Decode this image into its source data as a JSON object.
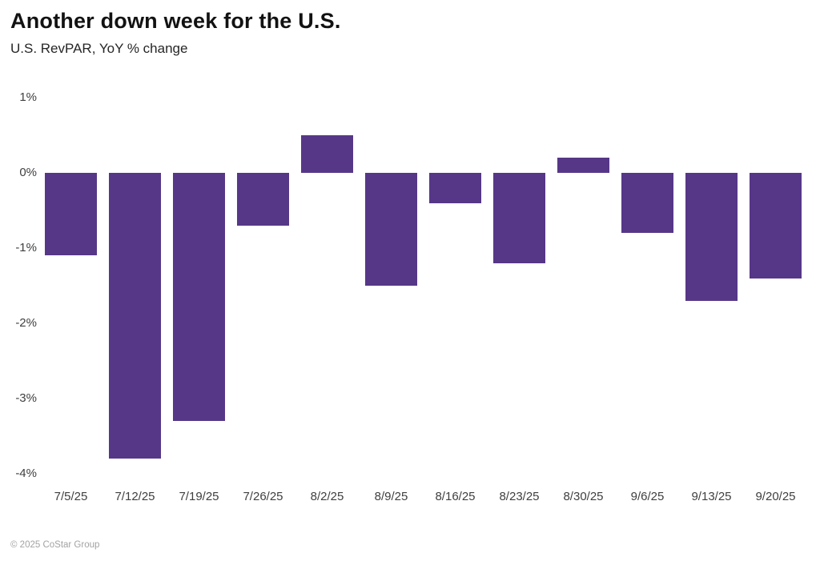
{
  "header": {
    "title": "Another down week for the U.S.",
    "subtitle": "U.S. RevPAR, YoY % change"
  },
  "footer": {
    "copyright": "© 2025 CoStar Group"
  },
  "colors": {
    "bar": "#563787",
    "title_text": "#121212",
    "subtitle_text": "#262626",
    "axis_text": "#3f3f3f",
    "footer_text": "#a3a3a3",
    "background": "#ffffff"
  },
  "chart_data": {
    "type": "bar",
    "title": "Another down week for the U.S.",
    "subtitle": "U.S. RevPAR, YoY % change",
    "categories": [
      "7/5/25",
      "7/12/25",
      "7/19/25",
      "7/26/25",
      "8/2/25",
      "8/9/25",
      "8/16/25",
      "8/23/25",
      "8/30/25",
      "9/6/25",
      "9/13/25",
      "9/20/25"
    ],
    "values": [
      -1.1,
      -3.8,
      -3.3,
      -0.7,
      0.5,
      -1.5,
      -0.4,
      -1.2,
      0.2,
      -0.8,
      -1.7,
      -1.4
    ],
    "unit": "%",
    "xlabel": "",
    "ylabel": "",
    "ylim": [
      -4,
      1
    ],
    "yticks": [
      1,
      0,
      -1,
      -2,
      -3,
      -4
    ],
    "ytick_labels": [
      "1%",
      "0%",
      "-1%",
      "-2%",
      "-3%",
      "-4%"
    ],
    "grid": false,
    "legend": false,
    "bar_color": "#563787"
  }
}
